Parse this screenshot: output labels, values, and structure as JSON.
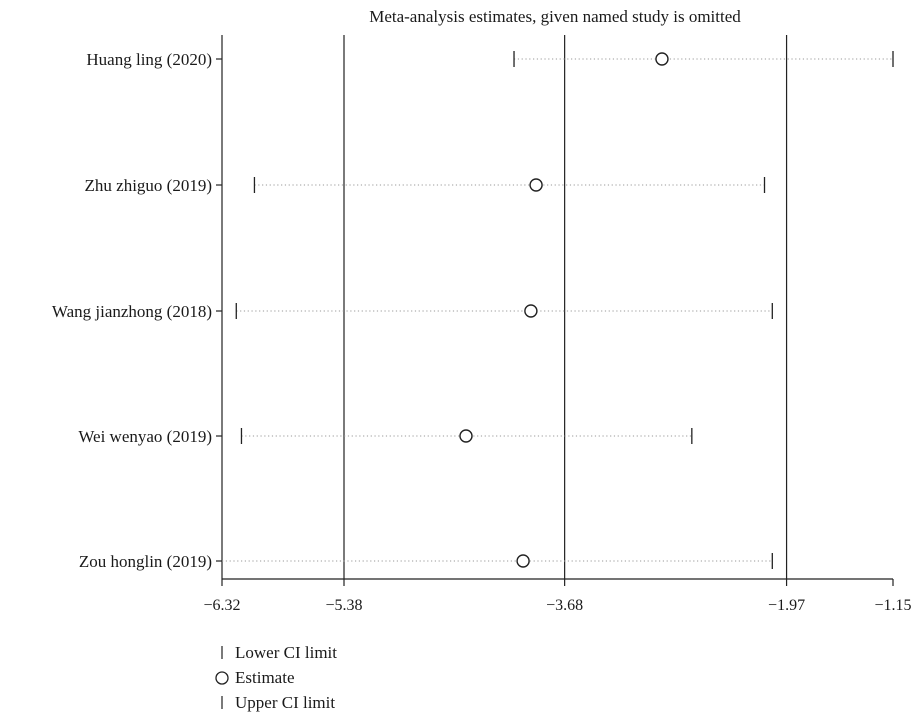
{
  "chart_data": {
    "type": "scatter",
    "title": "Meta-analysis estimates, given named study is omitted",
    "xlim": [
      -6.32,
      -1.15
    ],
    "ticks": [
      -6.32,
      -5.38,
      -3.68,
      -1.97,
      -1.15
    ],
    "tick_labels": [
      "−6.32",
      "−5.38",
      "−3.68",
      "−1.97",
      "−1.15"
    ],
    "reference_lines": [
      -5.38,
      -3.68,
      -1.97
    ],
    "studies": [
      {
        "label": "Huang ling (2020)",
        "lower": -4.07,
        "estimate": -2.93,
        "upper": -1.15
      },
      {
        "label": "Zhu zhiguo (2019)",
        "lower": -6.07,
        "estimate": -3.9,
        "upper": -2.14
      },
      {
        "label": "Wang jianzhong (2018)",
        "lower": -6.21,
        "estimate": -3.94,
        "upper": -2.08
      },
      {
        "label": "Wei wenyao (2019)",
        "lower": -6.17,
        "estimate": -4.44,
        "upper": -2.7
      },
      {
        "label": "Zou honglin (2019)",
        "lower": null,
        "estimate": -4.0,
        "upper": -2.08
      }
    ],
    "legend": {
      "position": "bottom-left",
      "items": [
        {
          "symbol": "|",
          "label": "Lower CI limit"
        },
        {
          "symbol": "○",
          "label": "Estimate"
        },
        {
          "symbol": "|",
          "label": "Upper CI limit"
        }
      ]
    }
  }
}
